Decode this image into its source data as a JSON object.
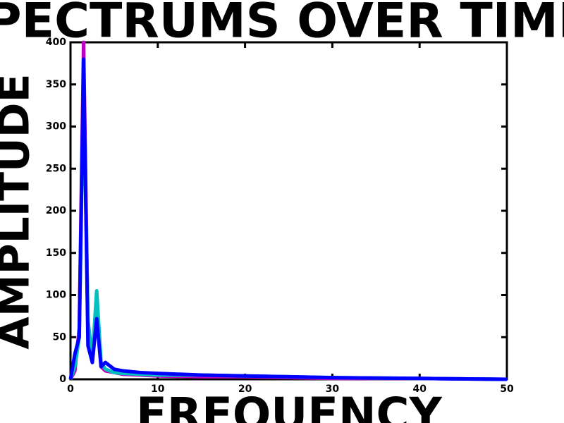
{
  "chart_data": {
    "type": "line",
    "title": "SPECTRUMS OVER TIME",
    "x_label": "FREQUENCY",
    "y_label": "AMPLITUDE",
    "x": [
      0,
      0.5,
      1,
      1.5,
      2,
      2.5,
      3,
      3.5,
      4,
      5,
      6,
      8,
      10,
      15,
      20,
      25,
      30,
      40,
      50
    ],
    "series": [
      {
        "color": "#c000c0",
        "values": [
          0,
          10,
          60,
          400,
          60,
          20,
          90,
          15,
          10,
          8,
          6,
          5,
          4,
          3,
          3,
          2,
          1,
          1,
          0
        ]
      },
      {
        "color": "#00c0c0",
        "values": [
          0,
          15,
          50,
          350,
          70,
          25,
          105,
          20,
          12,
          8,
          7,
          6,
          5,
          5,
          4,
          3,
          2,
          1,
          0
        ]
      },
      {
        "color": "#0000ff",
        "values": [
          0,
          30,
          50,
          380,
          40,
          20,
          72,
          15,
          20,
          12,
          10,
          8,
          7,
          5,
          4,
          3,
          2,
          1,
          0
        ]
      }
    ],
    "xlim": [
      0,
      50
    ],
    "xticks": [
      0,
      10,
      20,
      30,
      40,
      50
    ],
    "ylim": [
      0,
      400
    ],
    "yticks": [
      0,
      50,
      100,
      150,
      200,
      250,
      300,
      350,
      400
    ]
  }
}
